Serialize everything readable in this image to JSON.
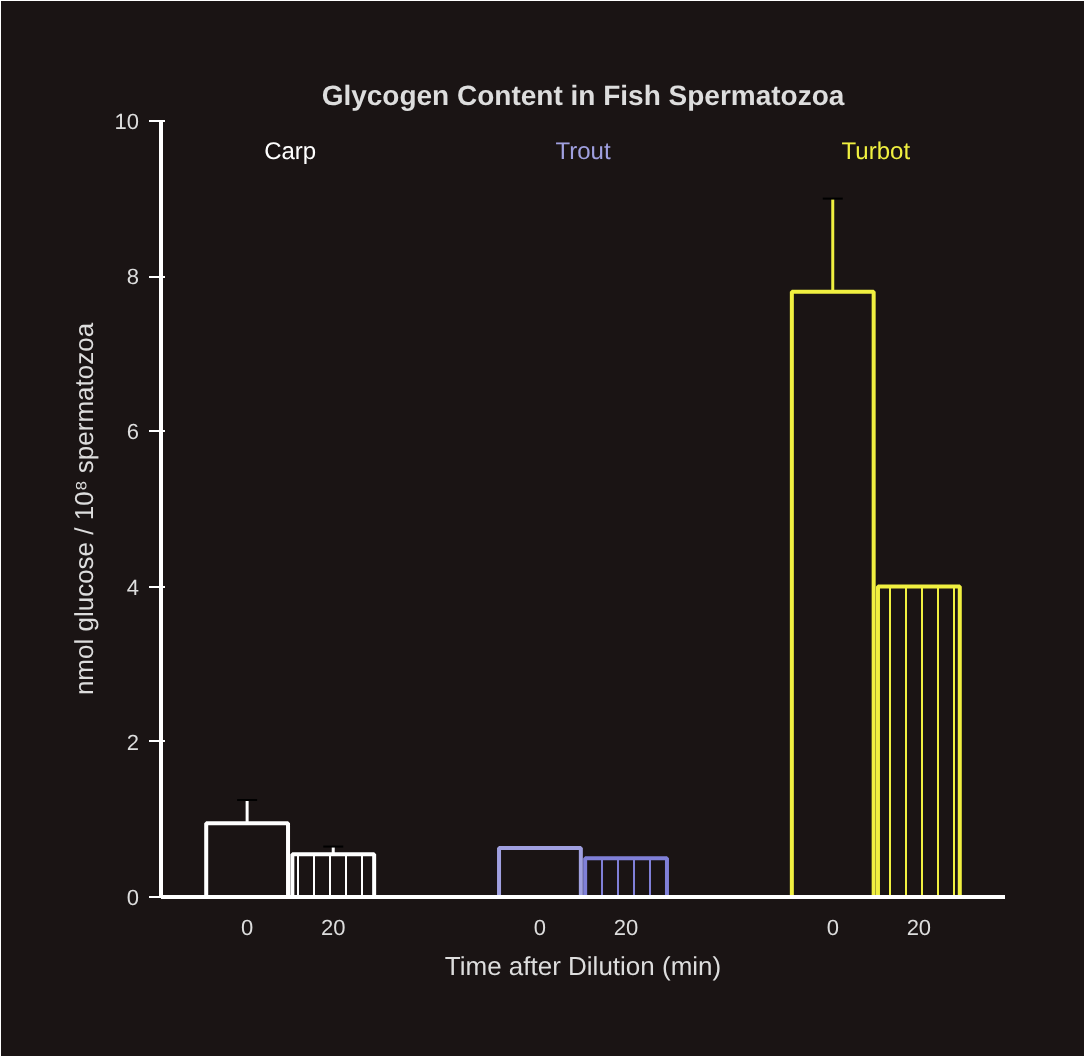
{
  "chart_data": {
    "type": "bar",
    "title": "Glycogen Content in Fish Spermatozoa",
    "xlabel": "Time after Dilution (min)",
    "ylabel": "nmol glucose / 10⁸ spermatozoa",
    "categories": [
      "0",
      "20",
      "0",
      "20",
      "0",
      "20"
    ],
    "values": [
      0.95,
      0.55,
      0.63,
      0.5,
      7.8,
      4.0
    ],
    "errors": [
      0.3,
      0.1,
      null,
      null,
      1.2,
      null
    ],
    "colors": [
      "#ffffff",
      "#ffffff",
      "#a0a0e0",
      "#8080d8",
      "#f0f040",
      "#f0f040"
    ],
    "annotations": [
      "Carp",
      "Trout",
      "Turbot"
    ],
    "ylim": [
      0,
      10
    ],
    "yticks": [
      0,
      2,
      4,
      6,
      8,
      10
    ],
    "grid": false
  }
}
